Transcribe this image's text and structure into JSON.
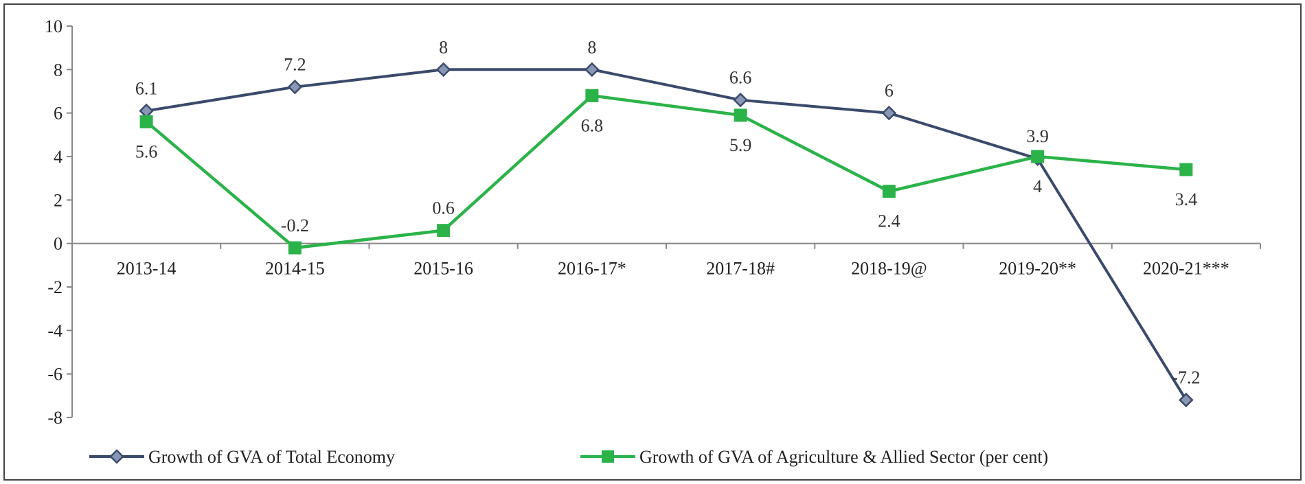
{
  "chart_data": {
    "type": "line",
    "categories": [
      "2013-14",
      "2014-15",
      "2015-16",
      "2016-17*",
      "2017-18#",
      "2018-19@",
      "2019-20**",
      "2020-21***"
    ],
    "ylim": [
      -8,
      10
    ],
    "yticks": [
      -8,
      -6,
      -4,
      -2,
      0,
      2,
      4,
      6,
      8,
      10
    ],
    "grid": false,
    "legend_position": "bottom",
    "series": [
      {
        "name": "Growth of GVA of Total Economy",
        "values": [
          6.1,
          7.2,
          8,
          8,
          6.6,
          6,
          3.9,
          -7.2
        ],
        "labels": [
          "6.1",
          "7.2",
          "8",
          "8",
          "6.6",
          "6",
          "3.9",
          "-7.2"
        ],
        "color": "#3b4a6b",
        "marker": "diamond"
      },
      {
        "name": "Growth of GVA of Agriculture & Allied Sector (per cent)",
        "values": [
          5.6,
          -0.2,
          0.6,
          6.8,
          5.9,
          2.4,
          4,
          3.4
        ],
        "labels": [
          "5.6",
          "-0.2",
          "0.6",
          "6.8",
          "5.9",
          "2.4",
          "4",
          "3.4"
        ],
        "color": "#2bb34a",
        "marker": "square"
      }
    ]
  }
}
